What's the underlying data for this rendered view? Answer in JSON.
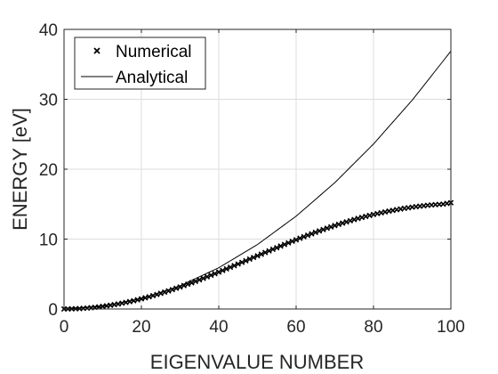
{
  "chart_data": {
    "type": "line",
    "xlabel": "EIGENVALUE NUMBER",
    "ylabel": "ENERGY [eV]",
    "xlim": [
      0,
      100
    ],
    "ylim": [
      0,
      40
    ],
    "xticks": [
      0,
      20,
      40,
      60,
      80,
      100
    ],
    "yticks": [
      0,
      10,
      20,
      30,
      40
    ],
    "grid": true,
    "legend_position": "top-left",
    "series": [
      {
        "name": "Numerical",
        "style": "markers-x",
        "color": "#000000",
        "x": [
          0,
          2,
          4,
          6,
          8,
          10,
          12,
          14,
          16,
          18,
          20,
          22,
          24,
          26,
          28,
          30,
          32,
          34,
          36,
          38,
          40,
          42,
          44,
          46,
          48,
          50,
          52,
          54,
          56,
          58,
          60,
          62,
          64,
          66,
          68,
          70,
          72,
          74,
          76,
          78,
          80,
          82,
          84,
          86,
          88,
          90,
          92,
          94,
          96,
          98,
          100
        ],
        "y": [
          0.0,
          0.02,
          0.06,
          0.13,
          0.24,
          0.37,
          0.53,
          0.72,
          0.94,
          1.18,
          1.45,
          1.75,
          2.07,
          2.41,
          2.77,
          3.15,
          3.55,
          3.96,
          4.39,
          4.83,
          5.28,
          5.74,
          6.2,
          6.67,
          7.14,
          7.61,
          8.08,
          8.54,
          9.0,
          9.46,
          9.9,
          10.34,
          10.76,
          11.17,
          11.56,
          11.93,
          12.29,
          12.63,
          12.95,
          13.24,
          13.52,
          13.77,
          14.0,
          14.21,
          14.4,
          14.57,
          14.71,
          14.83,
          14.93,
          15.0,
          15.2
        ]
      },
      {
        "name": "Analytical",
        "style": "line",
        "color": "#000000",
        "x": [
          0,
          10,
          20,
          30,
          40,
          50,
          60,
          70,
          80,
          90,
          100
        ],
        "y": [
          0.0,
          0.37,
          1.47,
          3.32,
          5.9,
          9.22,
          13.28,
          18.07,
          23.6,
          29.87,
          36.88
        ]
      }
    ]
  }
}
